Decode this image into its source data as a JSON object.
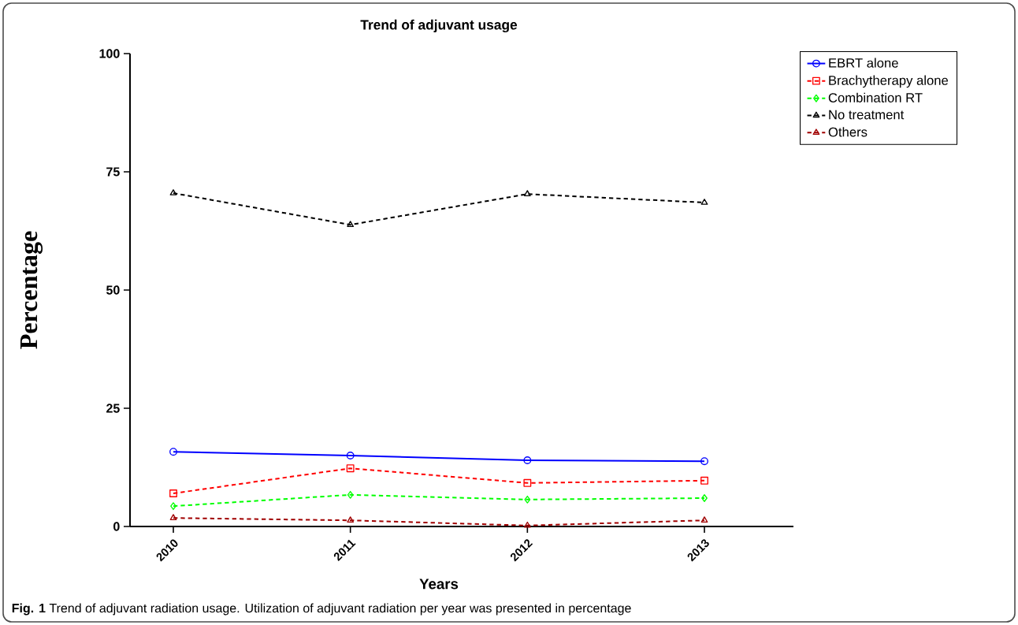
{
  "chart_data": {
    "type": "line",
    "title": "Trend of adjuvant usage",
    "xlabel": "Years",
    "ylabel": "Percentage",
    "categories": [
      "2010",
      "2011",
      "2012",
      "2013"
    ],
    "series": [
      {
        "name": "EBRT alone",
        "color": "#0000ff",
        "marker": "circle",
        "line_style": "solid",
        "values": [
          15.8,
          15.0,
          14.0,
          13.8
        ]
      },
      {
        "name": "Brachytherapy alone",
        "color": "#ff0000",
        "marker": "square",
        "line_style": "dashed",
        "values": [
          7.0,
          12.3,
          9.2,
          9.7
        ]
      },
      {
        "name": "Combination RT",
        "color": "#00ff00",
        "marker": "diamond",
        "line_style": "dashed",
        "values": [
          4.3,
          6.7,
          5.7,
          6.0
        ]
      },
      {
        "name": "No treatment",
        "color": "#000000",
        "marker": "triangle",
        "line_style": "dashed",
        "values": [
          70.5,
          63.8,
          70.3,
          68.5
        ]
      },
      {
        "name": "Others",
        "color": "#a00000",
        "marker": "triangle",
        "line_style": "dashed",
        "values": [
          1.8,
          1.3,
          0.2,
          1.3
        ]
      }
    ],
    "ylim": [
      0,
      100
    ],
    "yticks": [
      0,
      25,
      50,
      75,
      100
    ],
    "grid": false,
    "legend": "top right",
    "annotations": [
      "**Fig. 1** Trend of adjuvant radiation usage. Utilization of adjuvant radiation per year was presented in percentage"
    ]
  }
}
